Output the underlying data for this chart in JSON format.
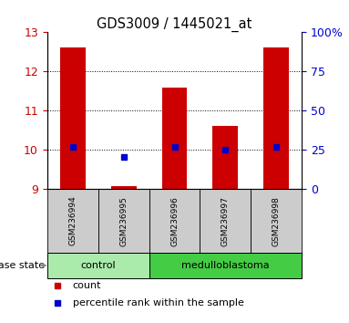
{
  "title": "GDS3009 / 1445021_at",
  "samples": [
    "GSM236994",
    "GSM236995",
    "GSM236996",
    "GSM236997",
    "GSM236998"
  ],
  "bar_bottom": 9.0,
  "bar_tops": [
    12.62,
    9.07,
    11.6,
    10.6,
    12.62
  ],
  "blue_dot_y": [
    10.07,
    9.83,
    10.07,
    10.0,
    10.07
  ],
  "ylim": [
    9,
    13
  ],
  "yticks_left": [
    9,
    10,
    11,
    12,
    13
  ],
  "yticks_right": [
    0,
    25,
    50,
    75,
    100
  ],
  "yticks_right_labels": [
    "0",
    "25",
    "50",
    "75",
    "100%"
  ],
  "bar_color": "#cc0000",
  "dot_color": "#0000cc",
  "bar_width": 0.5,
  "groups": [
    {
      "label": "control",
      "indices": [
        0,
        1
      ],
      "color": "#aaeaaa"
    },
    {
      "label": "medulloblastoma",
      "indices": [
        2,
        3,
        4
      ],
      "color": "#44cc44"
    }
  ],
  "group_label": "disease state",
  "legend_count_label": "count",
  "legend_pct_label": "percentile rank within the sample",
  "tick_label_color_left": "#cc0000",
  "tick_label_color_right": "#0000cc"
}
